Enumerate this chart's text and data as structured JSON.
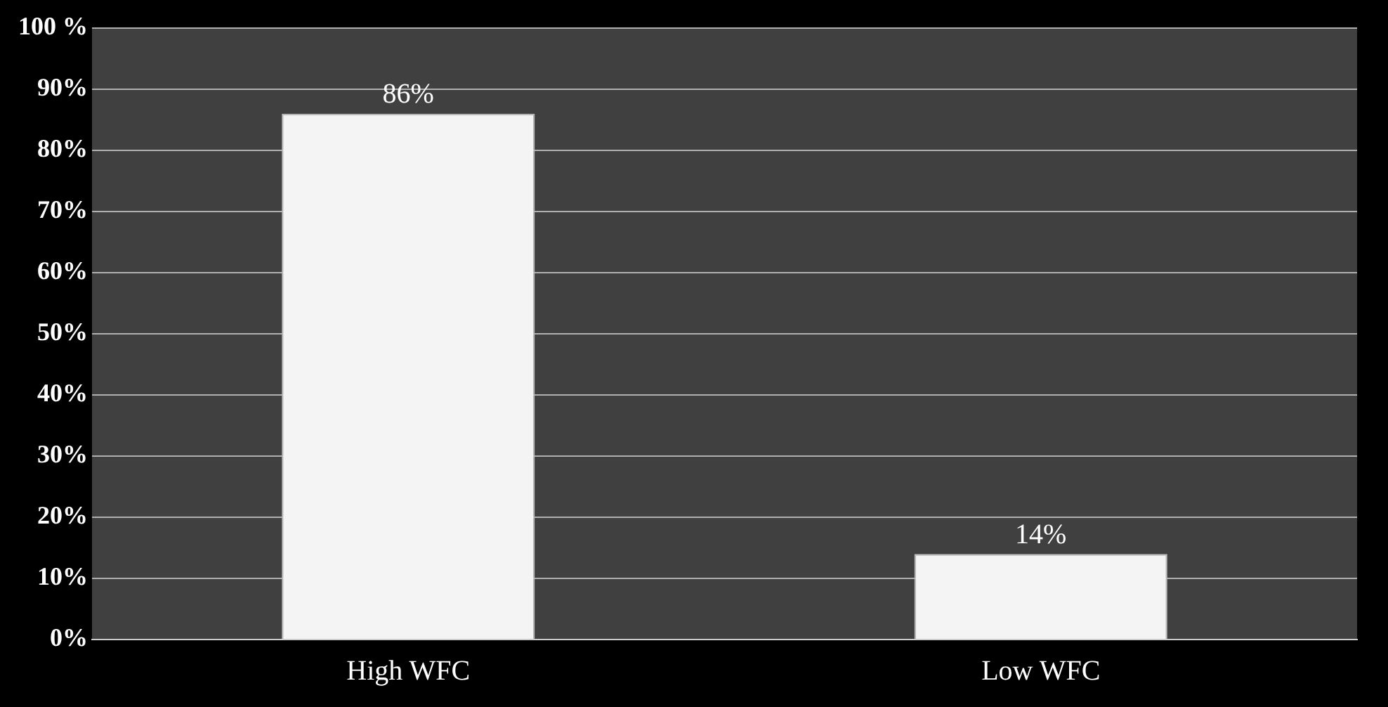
{
  "chart_data": {
    "type": "bar",
    "categories": [
      "High WFC",
      "Low WFC"
    ],
    "values": [
      86,
      14
    ],
    "value_labels": [
      "86%",
      "14%"
    ],
    "color": "#f4f4f4",
    "ylim": [
      0,
      100
    ],
    "yticks": [
      {
        "value": 0,
        "label": "0%"
      },
      {
        "value": 10,
        "label": "10%"
      },
      {
        "value": 20,
        "label": "20%"
      },
      {
        "value": 30,
        "label": "30%"
      },
      {
        "value": 40,
        "label": "40%"
      },
      {
        "value": 50,
        "label": "50%"
      },
      {
        "value": 60,
        "label": "60%"
      },
      {
        "value": 70,
        "label": "70%"
      },
      {
        "value": 80,
        "label": "80%"
      },
      {
        "value": 90,
        "label": "90%"
      },
      {
        "value": 100,
        "label": "100 %"
      }
    ],
    "grid": "y",
    "legend": false
  }
}
